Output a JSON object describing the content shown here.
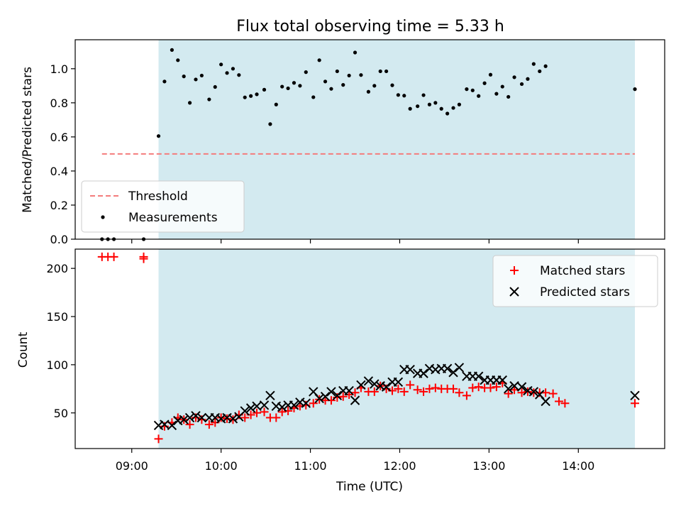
{
  "chart_data": [
    {
      "type": "scatter",
      "title": "Flux total observing time = 5.33 h",
      "xlabel": "",
      "ylabel": "Matched/Predicted stars",
      "xlim": [
        "08:22",
        "14:58"
      ],
      "ylim": [
        0,
        1.17
      ],
      "yticks": [
        0.0,
        0.2,
        0.4,
        0.6,
        0.8,
        1.0
      ],
      "ytick_labels": [
        "0.0",
        "0.2",
        "0.4",
        "0.6",
        "0.8",
        "1.0"
      ],
      "xticks": [
        "09:00",
        "10:00",
        "11:00",
        "12:00",
        "13:00",
        "14:00"
      ],
      "shaded_interval": [
        "09:18",
        "14:38"
      ],
      "shade_color": "#d3eaf0",
      "legend_position": "lower left",
      "threshold": {
        "name": "Threshold",
        "value": 0.5,
        "x_start": "08:40",
        "x_end": "14:38",
        "color": "#f47c7c",
        "style": "dashed"
      },
      "series": [
        {
          "name": "Measurements",
          "color": "#000000",
          "marker": "dot",
          "points": [
            [
              "08:40",
              0.0
            ],
            [
              "08:44",
              0.0
            ],
            [
              "08:48",
              0.0
            ],
            [
              "09:08",
              0.0
            ],
            [
              "09:18",
              0.605
            ],
            [
              "09:22",
              0.925
            ],
            [
              "09:27",
              1.11
            ],
            [
              "09:31",
              1.05
            ],
            [
              "09:35",
              0.955
            ],
            [
              "09:39",
              0.8
            ],
            [
              "09:43",
              0.937
            ],
            [
              "09:47",
              0.96
            ],
            [
              "09:52",
              0.82
            ],
            [
              "09:56",
              0.893
            ],
            [
              "10:00",
              1.025
            ],
            [
              "10:04",
              0.975
            ],
            [
              "10:08",
              1.0
            ],
            [
              "10:12",
              0.963
            ],
            [
              "10:16",
              0.832
            ],
            [
              "10:20",
              0.84
            ],
            [
              "10:24",
              0.85
            ],
            [
              "10:29",
              0.877
            ],
            [
              "10:33",
              0.675
            ],
            [
              "10:37",
              0.79
            ],
            [
              "10:41",
              0.895
            ],
            [
              "10:45",
              0.885
            ],
            [
              "10:49",
              0.917
            ],
            [
              "10:53",
              0.9
            ],
            [
              "10:57",
              0.98
            ],
            [
              "11:02",
              0.833
            ],
            [
              "11:06",
              1.05
            ],
            [
              "11:10",
              0.925
            ],
            [
              "11:14",
              0.882
            ],
            [
              "11:18",
              0.985
            ],
            [
              "11:22",
              0.905
            ],
            [
              "11:26",
              0.96
            ],
            [
              "11:30",
              1.095
            ],
            [
              "11:34",
              0.963
            ],
            [
              "11:39",
              0.865
            ],
            [
              "11:43",
              0.9
            ],
            [
              "11:47",
              0.985
            ],
            [
              "11:51",
              0.985
            ],
            [
              "11:55",
              0.903
            ],
            [
              "11:59",
              0.846
            ],
            [
              "12:03",
              0.842
            ],
            [
              "12:07",
              0.765
            ],
            [
              "12:12",
              0.78
            ],
            [
              "12:16",
              0.845
            ],
            [
              "12:20",
              0.79
            ],
            [
              "12:24",
              0.8
            ],
            [
              "12:28",
              0.765
            ],
            [
              "12:32",
              0.737
            ],
            [
              "12:36",
              0.77
            ],
            [
              "12:40",
              0.79
            ],
            [
              "12:45",
              0.88
            ],
            [
              "12:49",
              0.873
            ],
            [
              "12:53",
              0.84
            ],
            [
              "12:57",
              0.915
            ],
            [
              "13:01",
              0.965
            ],
            [
              "13:05",
              0.853
            ],
            [
              "13:09",
              0.895
            ],
            [
              "13:13",
              0.835
            ],
            [
              "13:17",
              0.95
            ],
            [
              "13:22",
              0.91
            ],
            [
              "13:26",
              0.94
            ],
            [
              "13:30",
              1.028
            ],
            [
              "13:34",
              0.985
            ],
            [
              "13:38",
              1.015
            ],
            [
              "14:38",
              0.88
            ]
          ]
        }
      ]
    },
    {
      "type": "scatter",
      "title": "",
      "xlabel": "Time (UTC)",
      "ylabel": "Count",
      "xlim": [
        "08:22",
        "14:58"
      ],
      "ylim": [
        13,
        220
      ],
      "yticks": [
        50,
        100,
        150,
        200
      ],
      "ytick_labels": [
        "50",
        "100",
        "150",
        "200"
      ],
      "xticks": [
        "09:00",
        "10:00",
        "11:00",
        "12:00",
        "13:00",
        "14:00"
      ],
      "xtick_labels": [
        "09:00",
        "10:00",
        "11:00",
        "12:00",
        "13:00",
        "14:00"
      ],
      "shaded_interval": [
        "09:18",
        "14:38"
      ],
      "shade_color": "#d3eaf0",
      "legend_position": "upper right",
      "series": [
        {
          "name": "Matched stars",
          "color": "#ff0000",
          "marker": "plus",
          "points": [
            [
              "08:40",
              212
            ],
            [
              "08:44",
              212
            ],
            [
              "08:48",
              212
            ],
            [
              "09:08",
              212
            ],
            [
              "09:08",
              210
            ],
            [
              "09:18",
              23
            ],
            [
              "09:22",
              36
            ],
            [
              "09:27",
              40
            ],
            [
              "09:31",
              45
            ],
            [
              "09:35",
              43
            ],
            [
              "09:39",
              38
            ],
            [
              "09:43",
              45
            ],
            [
              "09:47",
              43
            ],
            [
              "09:52",
              38
            ],
            [
              "09:56",
              40
            ],
            [
              "10:00",
              45
            ],
            [
              "10:04",
              44
            ],
            [
              "10:08",
              43
            ],
            [
              "10:12",
              48
            ],
            [
              "10:16",
              45
            ],
            [
              "10:20",
              48
            ],
            [
              "10:24",
              50
            ],
            [
              "10:29",
              51
            ],
            [
              "10:33",
              45
            ],
            [
              "10:37",
              45
            ],
            [
              "10:41",
              51
            ],
            [
              "10:45",
              52
            ],
            [
              "10:49",
              55
            ],
            [
              "10:53",
              57
            ],
            [
              "10:57",
              58
            ],
            [
              "11:02",
              60
            ],
            [
              "11:06",
              64
            ],
            [
              "11:10",
              63
            ],
            [
              "11:14",
              63
            ],
            [
              "11:18",
              66
            ],
            [
              "11:22",
              67
            ],
            [
              "11:26",
              69
            ],
            [
              "11:30",
              71
            ],
            [
              "11:34",
              76
            ],
            [
              "11:39",
              72
            ],
            [
              "11:43",
              72
            ],
            [
              "11:47",
              78
            ],
            [
              "11:51",
              75
            ],
            [
              "11:55",
              73
            ],
            [
              "11:59",
              75
            ],
            [
              "12:03",
              72
            ],
            [
              "12:07",
              79
            ],
            [
              "12:12",
              74
            ],
            [
              "12:16",
              72
            ],
            [
              "12:20",
              75
            ],
            [
              "12:24",
              76
            ],
            [
              "12:28",
              75
            ],
            [
              "12:32",
              75
            ],
            [
              "12:36",
              75
            ],
            [
              "12:40",
              71
            ],
            [
              "12:45",
              68
            ],
            [
              "12:49",
              76
            ],
            [
              "12:53",
              77
            ],
            [
              "12:57",
              76
            ],
            [
              "13:01",
              76
            ],
            [
              "13:05",
              77
            ],
            [
              "13:09",
              81
            ],
            [
              "13:13",
              70
            ],
            [
              "13:17",
              74
            ],
            [
              "13:22",
              71
            ],
            [
              "13:26",
              72
            ],
            [
              "13:30",
              71
            ],
            [
              "13:34",
              71
            ],
            [
              "13:38",
              71
            ],
            [
              "13:43",
              70
            ],
            [
              "13:47",
              62
            ],
            [
              "13:51",
              60
            ],
            [
              "14:38",
              60
            ]
          ]
        },
        {
          "name": "Predicted stars",
          "color": "#000000",
          "marker": "x",
          "points": [
            [
              "09:18",
              37
            ],
            [
              "09:22",
              38
            ],
            [
              "09:27",
              37
            ],
            [
              "09:31",
              42
            ],
            [
              "09:35",
              43
            ],
            [
              "09:39",
              45
            ],
            [
              "09:43",
              47
            ],
            [
              "09:47",
              45
            ],
            [
              "09:52",
              45
            ],
            [
              "09:56",
              45
            ],
            [
              "10:00",
              44
            ],
            [
              "10:04",
              45
            ],
            [
              "10:08",
              44
            ],
            [
              "10:12",
              46
            ],
            [
              "10:16",
              52
            ],
            [
              "10:20",
              55
            ],
            [
              "10:24",
              57
            ],
            [
              "10:29",
              58
            ],
            [
              "10:33",
              68
            ],
            [
              "10:37",
              57
            ],
            [
              "10:41",
              56
            ],
            [
              "10:45",
              58
            ],
            [
              "10:49",
              58
            ],
            [
              "10:53",
              61
            ],
            [
              "10:57",
              60
            ],
            [
              "11:02",
              72
            ],
            [
              "11:06",
              65
            ],
            [
              "11:10",
              67
            ],
            [
              "11:14",
              72
            ],
            [
              "11:18",
              68
            ],
            [
              "11:22",
              73
            ],
            [
              "11:26",
              73
            ],
            [
              "11:30",
              63
            ],
            [
              "11:34",
              79
            ],
            [
              "11:39",
              83
            ],
            [
              "11:43",
              80
            ],
            [
              "11:47",
              78
            ],
            [
              "11:51",
              77
            ],
            [
              "11:55",
              82
            ],
            [
              "11:59",
              82
            ],
            [
              "12:03",
              95
            ],
            [
              "12:07",
              95
            ],
            [
              "12:12",
              91
            ],
            [
              "12:16",
              91
            ],
            [
              "12:20",
              96
            ],
            [
              "12:24",
              95
            ],
            [
              "12:28",
              96
            ],
            [
              "12:32",
              96
            ],
            [
              "12:36",
              92
            ],
            [
              "12:40",
              97
            ],
            [
              "12:45",
              88
            ],
            [
              "12:49",
              88
            ],
            [
              "12:53",
              88
            ],
            [
              "12:57",
              84
            ],
            [
              "13:01",
              84
            ],
            [
              "13:05",
              84
            ],
            [
              "13:09",
              84
            ],
            [
              "13:13",
              75
            ],
            [
              "13:17",
              78
            ],
            [
              "13:22",
              77
            ],
            [
              "13:26",
              73
            ],
            [
              "13:30",
              72
            ],
            [
              "13:34",
              69
            ],
            [
              "13:38",
              62
            ],
            [
              "14:38",
              68
            ]
          ]
        }
      ]
    }
  ]
}
